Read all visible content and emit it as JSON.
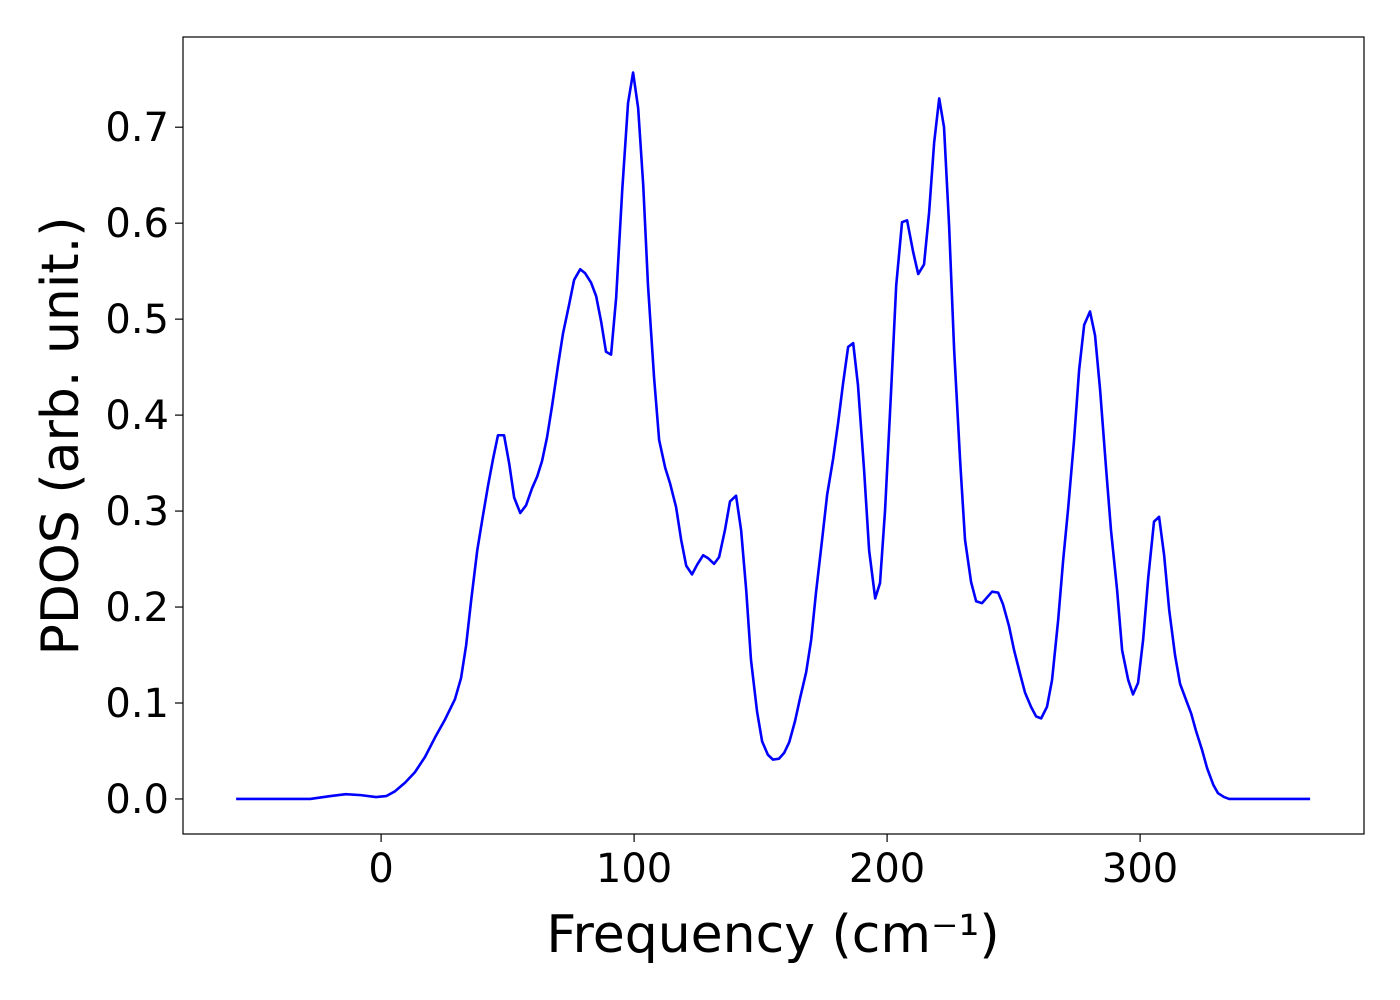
{
  "chart_data": {
    "type": "line",
    "x_label": "Frequency (cm⁻¹)",
    "y_label": "PDOS (arb. unit.)",
    "color": "#0000ff",
    "x": [
      -57.3,
      -28,
      -20,
      -14,
      -8,
      -2,
      2,
      5.5,
      9.5,
      13.4,
      17.4,
      21.3,
      25.3,
      29.2,
      31.6,
      33.6,
      35.6,
      38,
      40.3,
      42.3,
      44.3,
      46.2,
      48.6,
      50.6,
      52.6,
      55,
      57.3,
      59.7,
      61.7,
      63.6,
      65.6,
      67.6,
      70,
      71.9,
      74.3,
      76.3,
      78.7,
      80.6,
      83,
      85,
      87,
      88.9,
      90.9,
      92.9,
      95.3,
      97.6,
      99.6,
      101.6,
      103.6,
      105.5,
      107.9,
      109.9,
      112.3,
      114.2,
      116.6,
      118.6,
      120.6,
      122.9,
      124.9,
      127.3,
      129.2,
      131.6,
      133.6,
      135.9,
      137.9,
      140.3,
      142.3,
      144.3,
      146.2,
      148.6,
      150.6,
      152.9,
      154.9,
      157.3,
      159.3,
      161.3,
      163.6,
      165.6,
      168,
      170,
      171.9,
      174.3,
      176.3,
      178.7,
      180.6,
      182.6,
      184.6,
      186.6,
      188.5,
      190.9,
      192.9,
      195.3,
      197.2,
      199.2,
      201.6,
      203.6,
      205.9,
      207.9,
      210.3,
      212.3,
      214.6,
      216.6,
      218.6,
      220.6,
      222.5,
      224.5,
      226.5,
      228.9,
      230.8,
      233.2,
      235.2,
      237.5,
      239.5,
      241.5,
      243.9,
      245.8,
      248.2,
      250.2,
      252.6,
      254.5,
      256.9,
      258.9,
      260.9,
      263.2,
      265.2,
      267.6,
      269.6,
      271.5,
      273.9,
      275.9,
      277.9,
      280.2,
      282.2,
      284.2,
      286.6,
      288.5,
      290.9,
      292.9,
      295.3,
      297.2,
      299.2,
      301.2,
      303.2,
      305.5,
      307.5,
      309.5,
      311.5,
      313.8,
      315.8,
      318.2,
      320.2,
      322.1,
      324.5,
      326.5,
      328.9,
      330.8,
      333.2,
      335.2,
      367.2
    ],
    "values": [
      0,
      0,
      0.003,
      0.005,
      0.004,
      0.002,
      0.003,
      0.008,
      0.017,
      0.028,
      0.044,
      0.064,
      0.083,
      0.104,
      0.126,
      0.16,
      0.207,
      0.259,
      0.296,
      0.327,
      0.355,
      0.379,
      0.379,
      0.35,
      0.314,
      0.298,
      0.306,
      0.324,
      0.336,
      0.352,
      0.377,
      0.41,
      0.453,
      0.485,
      0.515,
      0.541,
      0.552,
      0.548,
      0.538,
      0.524,
      0.497,
      0.466,
      0.463,
      0.522,
      0.634,
      0.725,
      0.757,
      0.72,
      0.64,
      0.535,
      0.439,
      0.374,
      0.345,
      0.329,
      0.304,
      0.27,
      0.243,
      0.234,
      0.244,
      0.254,
      0.251,
      0.245,
      0.252,
      0.28,
      0.31,
      0.316,
      0.28,
      0.218,
      0.145,
      0.091,
      0.06,
      0.046,
      0.041,
      0.042,
      0.048,
      0.059,
      0.081,
      0.105,
      0.132,
      0.166,
      0.215,
      0.27,
      0.317,
      0.355,
      0.391,
      0.433,
      0.471,
      0.475,
      0.431,
      0.343,
      0.259,
      0.209,
      0.225,
      0.301,
      0.426,
      0.535,
      0.601,
      0.603,
      0.57,
      0.547,
      0.557,
      0.611,
      0.684,
      0.73,
      0.7,
      0.598,
      0.468,
      0.351,
      0.27,
      0.226,
      0.206,
      0.204,
      0.21,
      0.216,
      0.215,
      0.203,
      0.18,
      0.155,
      0.13,
      0.111,
      0.096,
      0.086,
      0.084,
      0.096,
      0.124,
      0.186,
      0.249,
      0.301,
      0.374,
      0.447,
      0.494,
      0.508,
      0.483,
      0.426,
      0.343,
      0.28,
      0.218,
      0.155,
      0.124,
      0.109,
      0.121,
      0.166,
      0.23,
      0.289,
      0.294,
      0.254,
      0.197,
      0.15,
      0.12,
      0.103,
      0.089,
      0.071,
      0.051,
      0.032,
      0.015,
      0.006,
      0.002,
      0,
      0
    ],
    "xlim": [
      -78.3,
      388.5
    ],
    "ylim": [
      -0.0365,
      0.794
    ],
    "xticks": [
      0,
      100,
      200,
      300
    ],
    "yticks": [
      {
        "value": 0,
        "label": "0.0"
      },
      0.1,
      0.2,
      0.3,
      0.4,
      0.5,
      0.6,
      0.7
    ]
  }
}
